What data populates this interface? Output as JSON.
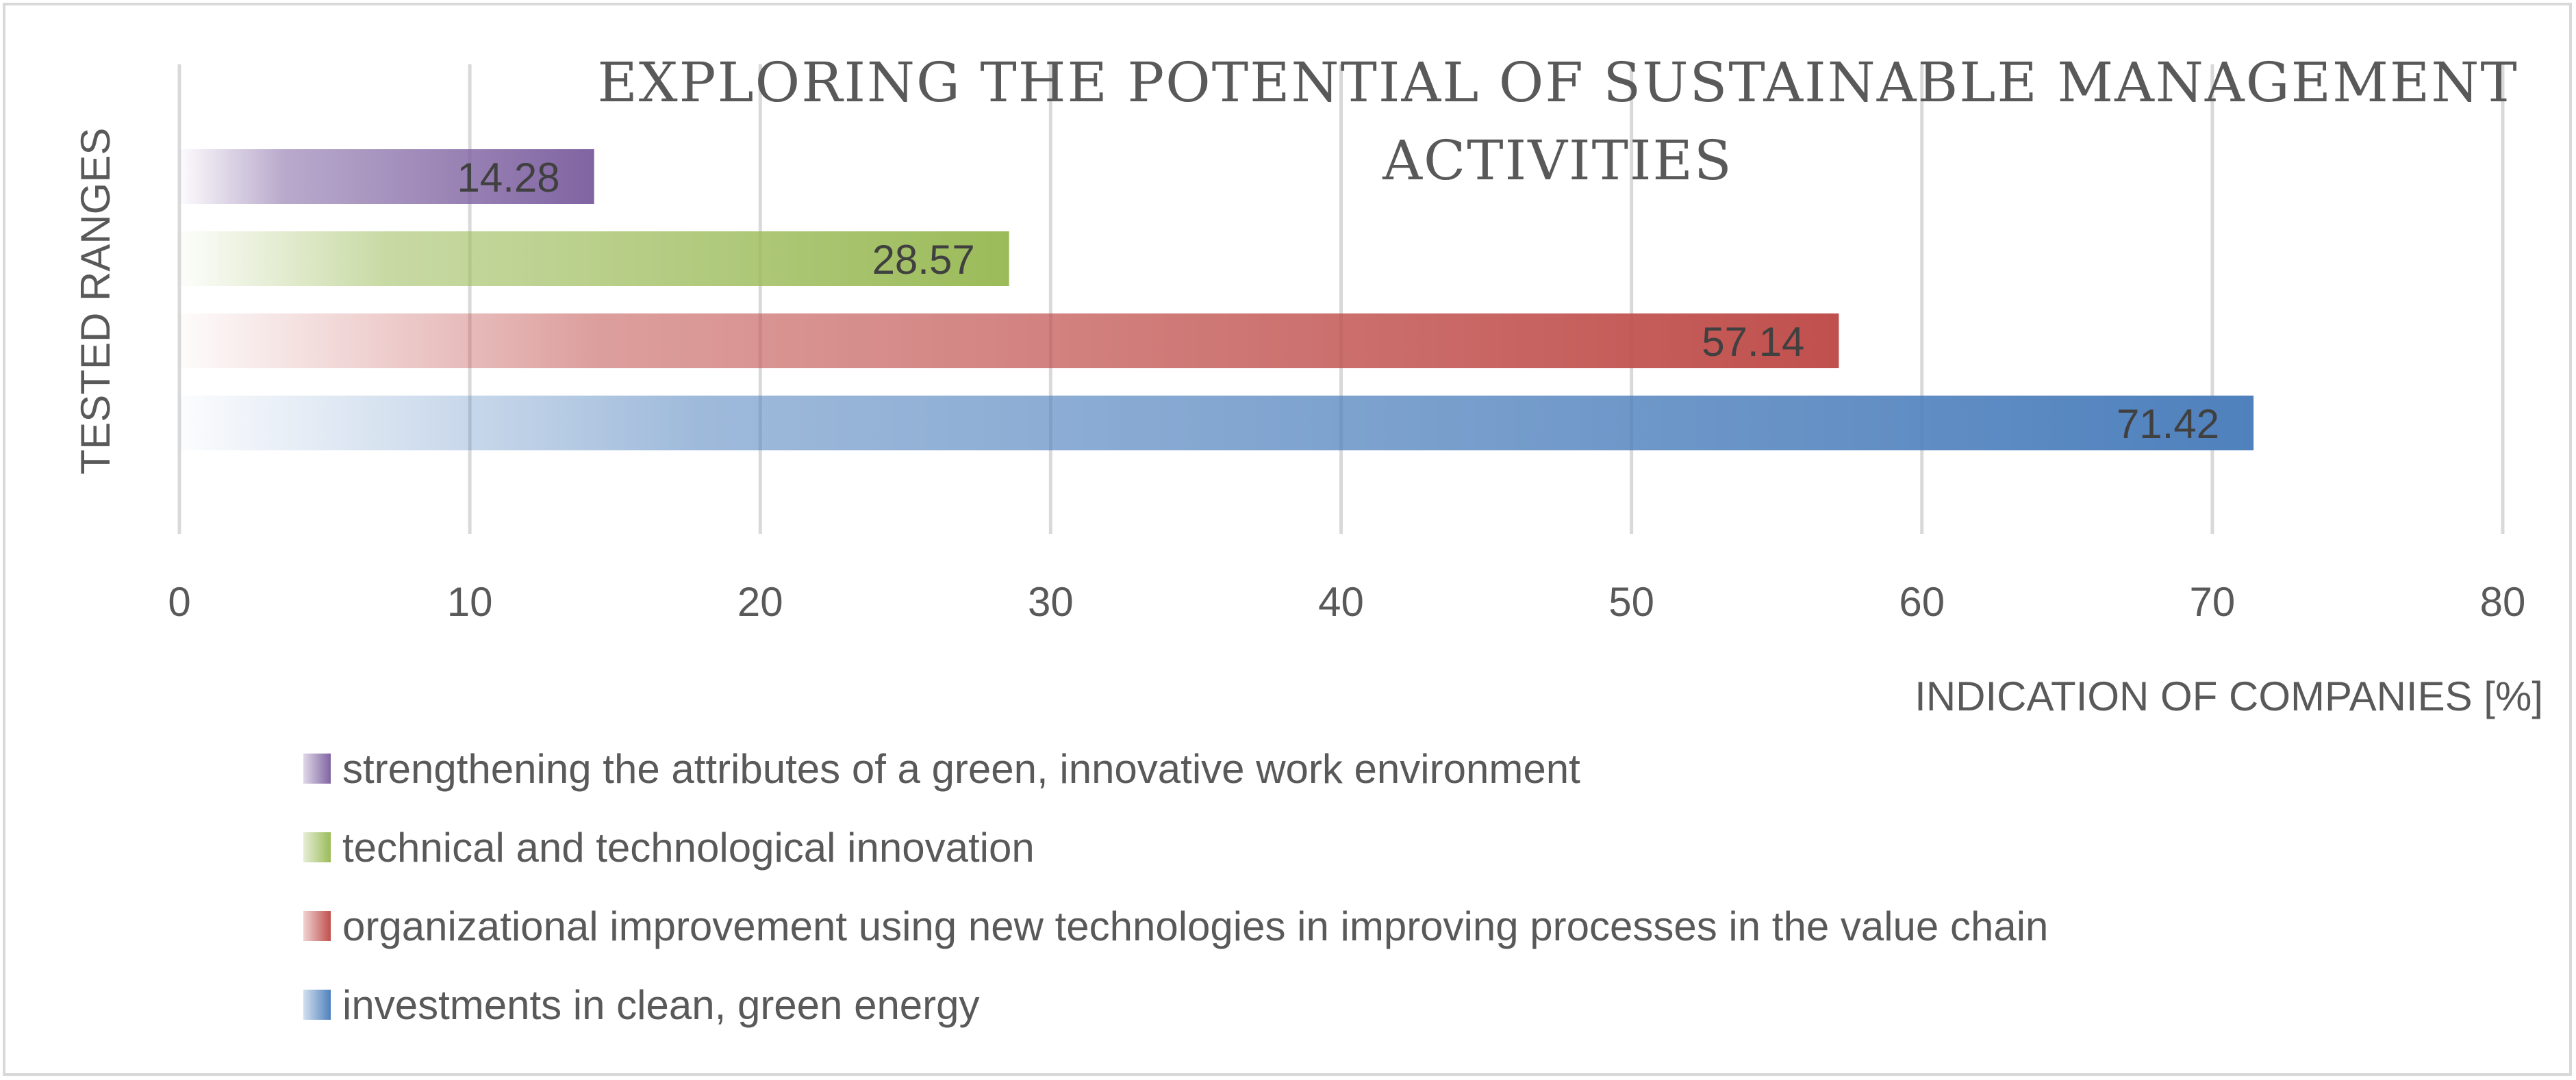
{
  "chart_data": {
    "type": "bar",
    "orientation": "horizontal",
    "title_lines": [
      "EXPLORING THE POTENTIAL OF SUSTAINABLE MANAGEMENT",
      "ACTIVITIES"
    ],
    "xlabel": "INDICATION OF COMPANIES [%]",
    "ylabel": "TESTED RANGES",
    "xlim": [
      0,
      80
    ],
    "xticks": [
      0,
      10,
      20,
      30,
      40,
      50,
      60,
      70,
      80
    ],
    "grid": true,
    "legend_position": "bottom",
    "series": [
      {
        "name": "strengthening the attributes of a green, innovative work environment",
        "value": 14.28,
        "label": "14.28",
        "color": "#8064a2"
      },
      {
        "name": "technical and technological innovation",
        "value": 28.57,
        "label": "28.57",
        "color": "#9bbb59"
      },
      {
        "name": "organizational improvement using new technologies in improving processes in the value chain",
        "value": 57.14,
        "label": "57.14",
        "color": "#c0504d"
      },
      {
        "name": "investments in clean, green energy",
        "value": 71.42,
        "label": "71.42",
        "color": "#4f81bd"
      }
    ]
  }
}
